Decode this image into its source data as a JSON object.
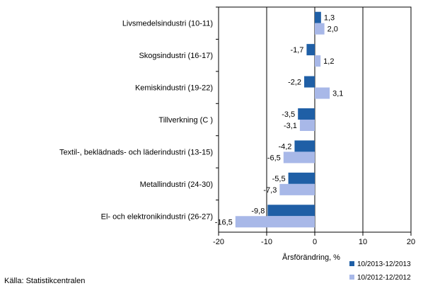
{
  "chart_data": {
    "type": "bar",
    "orientation": "horizontal",
    "categories": [
      "Livsmedelsindustri (10-11)",
      "Skogsindustri (16-17)",
      "Kemiskindustri (19-22)",
      "Tillverkning (C )",
      "Textil-, beklädnads- och läderindustri (13-15)",
      "Metallindustri (24-30)",
      "El- och elektronikindustri (26-27)"
    ],
    "series": [
      {
        "name": "10/2013-12/2013",
        "color": "#1f5fa6",
        "values": [
          1.3,
          -1.7,
          -2.2,
          -3.5,
          -4.2,
          -5.5,
          -9.8
        ],
        "labels": [
          "1,3",
          "-1,7",
          "-2,2",
          "-3,5",
          "-4,2",
          "-5,5",
          "-9,8"
        ]
      },
      {
        "name": "10/2012-12/2012",
        "color": "#a8b8e8",
        "values": [
          2.0,
          1.2,
          3.1,
          -3.1,
          -6.5,
          -7.3,
          -16.5
        ],
        "labels": [
          "2,0",
          "1,2",
          "3,1",
          "-3,1",
          "-6,5",
          "-7,3",
          "-16,5"
        ]
      }
    ],
    "xlabel": "Årsförändring, %",
    "xlim": [
      -20,
      20
    ],
    "xticks": [
      -20,
      -10,
      0,
      10,
      20
    ],
    "xtick_labels": [
      "-20",
      "-10",
      "0",
      "10",
      "20"
    ],
    "grid": "vertical",
    "legend_position": "bottom-right",
    "source": "Källa: Statistikcentralen"
  }
}
